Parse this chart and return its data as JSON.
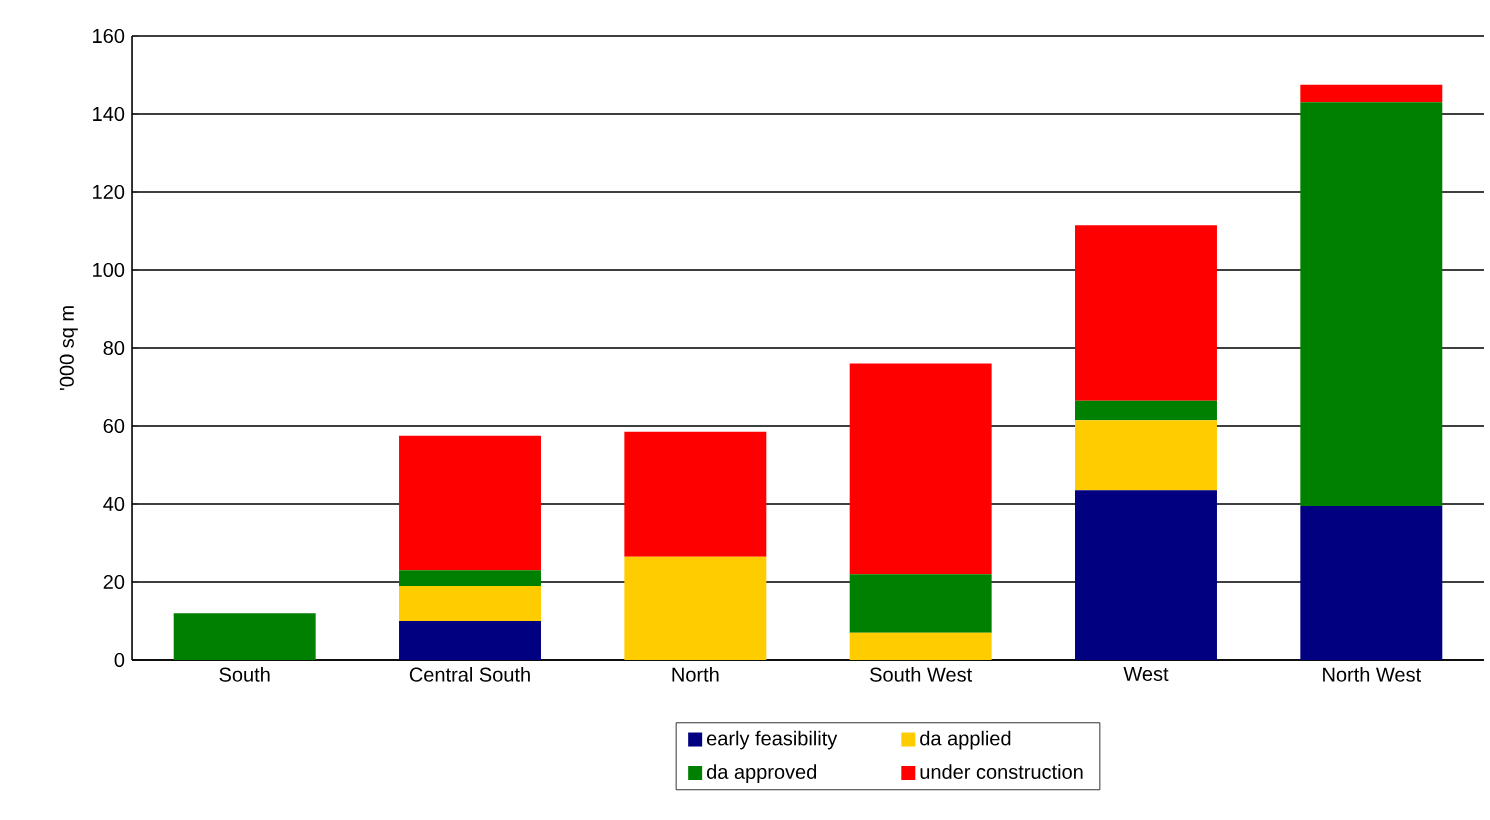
{
  "chart_data": {
    "type": "bar",
    "stacked": true,
    "ylabel": "'000 sq m",
    "categories": [
      "South",
      "Central South",
      "North",
      "South West",
      "West",
      "North West"
    ],
    "ylim": [
      0,
      160
    ],
    "yticks": [
      0,
      20,
      40,
      60,
      80,
      100,
      120,
      140,
      160
    ],
    "grid": "y",
    "legend": "bottom",
    "series": [
      {
        "name": "early feasibility",
        "color": "#000080",
        "values": [
          0,
          10,
          0,
          0,
          43.5,
          39.5
        ]
      },
      {
        "name": "da applied",
        "color": "#ffcc00",
        "values": [
          0,
          9,
          26.5,
          7,
          18,
          0
        ]
      },
      {
        "name": "da approved",
        "color": "#008000",
        "values": [
          12,
          4,
          0,
          15,
          5,
          103.5
        ]
      },
      {
        "name": "under construction",
        "color": "#ff0000",
        "values": [
          0,
          34.5,
          32,
          54,
          45,
          4.5
        ]
      }
    ]
  }
}
